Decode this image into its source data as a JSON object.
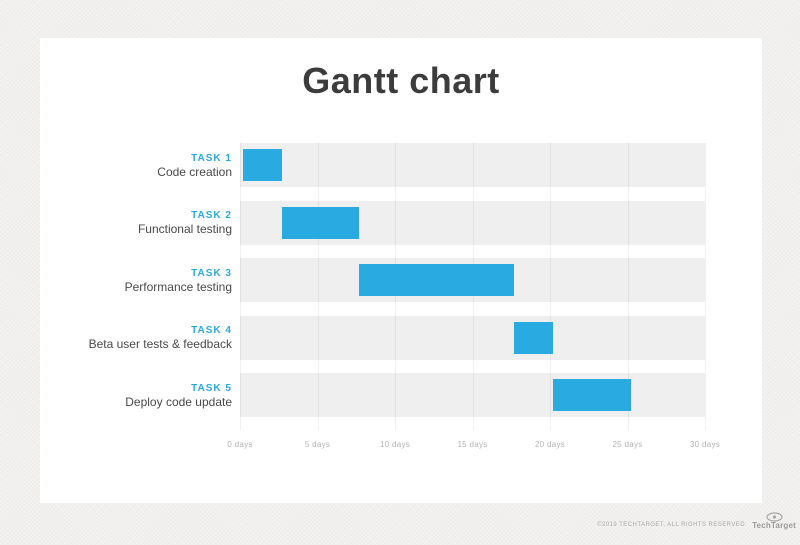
{
  "title": "Gantt chart",
  "chart_data": {
    "type": "gantt-bar",
    "title": "Gantt chart",
    "x_unit": "days",
    "xlim": [
      0,
      30
    ],
    "x_ticks": [
      0,
      5,
      10,
      15,
      20,
      25,
      30
    ],
    "x_tick_labels": [
      "0 days",
      "5 days",
      "10 days",
      "15 days",
      "20 days",
      "25 days",
      "30 days"
    ],
    "gridlines": true,
    "bar_color": "#29abe2",
    "row_stripe_color": "#efefef",
    "tasks": [
      {
        "name": "TASK 1",
        "label": "Code creation",
        "start_days": 0,
        "end_days": 2.5
      },
      {
        "name": "TASK 2",
        "label": "Functional testing",
        "start_days": 2.5,
        "end_days": 7.5
      },
      {
        "name": "TASK 3",
        "label": "Performance testing",
        "start_days": 7.5,
        "end_days": 17.5
      },
      {
        "name": "TASK 4",
        "label": "Beta user tests & feedback",
        "start_days": 17.5,
        "end_days": 20
      },
      {
        "name": "TASK 5",
        "label": "Deploy code update",
        "start_days": 20,
        "end_days": 25
      }
    ]
  },
  "footer": {
    "copyright": "©2019 TECHTARGET, ALL RIGHTS RESERVED",
    "brand": "TechTarget",
    "logo_icon": "eye-target-icon"
  },
  "colors": {
    "accent_blue": "#29abe2",
    "title_text": "#3c3c3c",
    "task_desc_text": "#4a4a4a",
    "axis_label_text": "#b3b3b3",
    "stripe": "#efefef",
    "card_background": "#ffffff",
    "page_background": "#f3f2f0"
  }
}
